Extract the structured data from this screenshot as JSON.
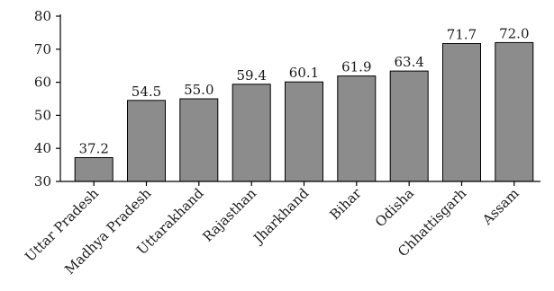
{
  "chart_data": {
    "type": "bar",
    "categories": [
      "Uttar Pradesh",
      "Madhya Pradesh",
      "Uttarakhand",
      "Rajasthan",
      "Jharkhand",
      "Bihar",
      "Odisha",
      "Chhattisgarh",
      "Assam"
    ],
    "values": [
      37.2,
      54.5,
      55.0,
      59.4,
      60.1,
      61.9,
      63.4,
      71.7,
      72.0
    ],
    "data_labels": [
      "37.2",
      "54.5",
      "55.0",
      "59.4",
      "60.1",
      "61.9",
      "63.4",
      "71.7",
      "72.0"
    ],
    "title": "",
    "xlabel": "",
    "ylabel": "",
    "ylim": [
      30,
      80
    ],
    "yticks": [
      30,
      40,
      50,
      60,
      70,
      80
    ],
    "grid": false,
    "legend": "none",
    "bar_color": "#8c8c8c"
  }
}
